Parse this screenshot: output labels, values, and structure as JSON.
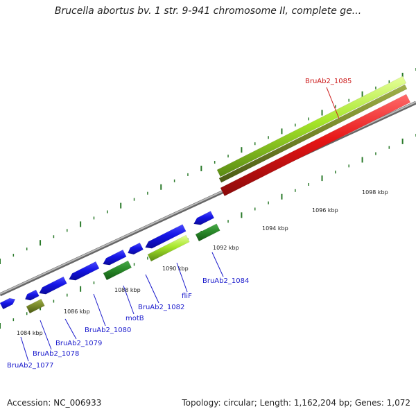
{
  "title": "Brucella abortus bv. 1 str. 9-941 chromosome II, complete ge...",
  "footer": {
    "accession": "Accession: NC_006933",
    "summary": "Topology: circular; Length: 1,162,204 bp; Genes: 1,072"
  },
  "colors": {
    "backbone": "#8a8a8a",
    "cds_blue": "#1515e6",
    "cds_green": "#2a8a2a",
    "cds_olive": "#7a8a2a",
    "cds_lime": "#a6e62a",
    "cds_red": "#e61515",
    "tick": "#2a7a2a",
    "label_blue": "#1a1acc",
    "label_red": "#cc1a1a"
  },
  "ticks": [
    {
      "label": "1084 kbp"
    },
    {
      "label": "1086 kbp"
    },
    {
      "label": "1088 kbp"
    },
    {
      "label": "1090 kbp"
    },
    {
      "label": "1092 kbp"
    },
    {
      "label": "1094 kbp"
    },
    {
      "label": "1096 kbp"
    },
    {
      "label": "1098 kbp"
    }
  ],
  "gene_labels": [
    {
      "name": "BruAb2_1077",
      "color": "label_blue"
    },
    {
      "name": "BruAb2_1078",
      "color": "label_blue"
    },
    {
      "name": "BruAb2_1079",
      "color": "label_blue"
    },
    {
      "name": "BruAb2_1080",
      "color": "label_blue"
    },
    {
      "name": "motB",
      "color": "label_blue"
    },
    {
      "name": "BruAb2_1082",
      "color": "label_blue"
    },
    {
      "name": "fliF",
      "color": "label_blue"
    },
    {
      "name": "BruAb2_1084",
      "color": "label_blue"
    },
    {
      "name": "BruAb2_1085",
      "color": "label_red"
    }
  ]
}
